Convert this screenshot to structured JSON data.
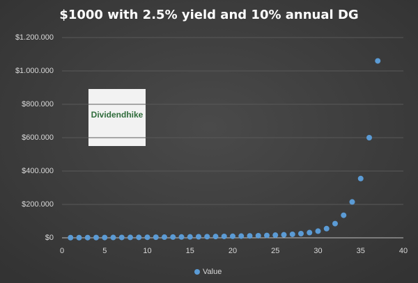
{
  "chart_data": {
    "type": "scatter",
    "title": "$1000 with 2.5% yield and 10% annual DG",
    "logo": "Dividendhike",
    "x": [
      1,
      2,
      3,
      4,
      5,
      6,
      7,
      8,
      9,
      10,
      11,
      12,
      13,
      14,
      15,
      16,
      17,
      18,
      19,
      20,
      21,
      22,
      23,
      24,
      25,
      26,
      27,
      28,
      29,
      30,
      31,
      32,
      33,
      34,
      35,
      36,
      37
    ],
    "series": [
      {
        "name": "Value",
        "color": "#5b9bd5",
        "values": [
          1000,
          1100,
          1300,
          1500,
          1700,
          1900,
          2200,
          2500,
          2800,
          3200,
          3600,
          4000,
          4500,
          5000,
          5600,
          6200,
          6900,
          7600,
          8400,
          9300,
          10300,
          11400,
          12700,
          14200,
          16000,
          18000,
          21000,
          25000,
          31000,
          40000,
          55000,
          85000,
          135000,
          215000,
          355000,
          600000,
          1060000
        ]
      }
    ],
    "xlim": [
      0,
      40
    ],
    "xticks": [
      0,
      5,
      10,
      15,
      20,
      25,
      30,
      35,
      40
    ],
    "ylim": [
      0,
      1200000
    ],
    "yticks": [
      {
        "value": 0,
        "label": "$0"
      },
      {
        "value": 200000,
        "label": "$200.000"
      },
      {
        "value": 400000,
        "label": "$400.000"
      },
      {
        "value": 600000,
        "label": "$600.000"
      },
      {
        "value": 800000,
        "label": "$800.000"
      },
      {
        "value": 1000000,
        "label": "$1.000.000"
      },
      {
        "value": 1200000,
        "label": "$1.200.000"
      }
    ],
    "grid": true,
    "legend": "bottom"
  }
}
